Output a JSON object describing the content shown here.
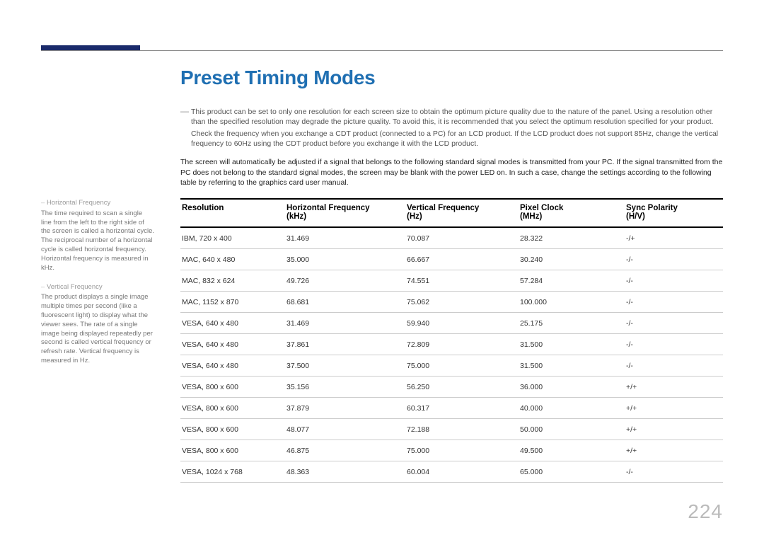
{
  "page": {
    "title": "Preset Timing Modes",
    "page_number": "224",
    "note1": "This product can be set to only one resolution for each screen size to obtain the optimum picture quality due to the nature of the panel. Using a resolution other than the specified resolution may degrade the picture quality. To avoid this, it is recommended that you select the optimum resolution specified for your product.",
    "note2": "Check the frequency when you exchange a CDT product (connected to a PC) for an LCD product. If the LCD product does not support 85Hz, change the vertical frequency to 60Hz using the CDT product before you exchange it with the LCD product.",
    "intro": "The screen will automatically be adjusted if a signal that belongs to the following standard signal modes is transmitted from your PC. If the signal transmitted from the PC does not belong to the standard signal modes, the screen may be blank with the power LED on. In such a case, change the settings according to the following table by referring to the graphics card user manual."
  },
  "sidebar": {
    "hf_term": "Horizontal Frequency",
    "hf_desc": "The time required to scan a single line from the left to the right side of the screen is called a horizontal cycle. The reciprocal number of a horizontal cycle is called horizontal frequency. Horizontal frequency is measured in kHz.",
    "vf_term": "Vertical Frequency",
    "vf_desc": "The product displays a single image multiple times per second (like a fluorescent light) to display what the viewer sees. The rate of a single image being displayed repeatedly per second is called vertical frequency or refresh rate. Vertical frequency is measured in Hz."
  },
  "table": {
    "columns": {
      "c1": "Resolution",
      "c2a": "Horizontal Frequency",
      "c2b": "(kHz)",
      "c3a": "Vertical Frequency",
      "c3b": "(Hz)",
      "c4a": "Pixel Clock",
      "c4b": "(MHz)",
      "c5a": "Sync Polarity",
      "c5b": "(H/V)"
    },
    "rows": [
      {
        "res": "IBM, 720 x 400",
        "hf": "31.469",
        "vf": "70.087",
        "pc": "28.322",
        "sp": "-/+"
      },
      {
        "res": "MAC, 640 x 480",
        "hf": "35.000",
        "vf": "66.667",
        "pc": "30.240",
        "sp": "-/-"
      },
      {
        "res": "MAC, 832 x 624",
        "hf": "49.726",
        "vf": "74.551",
        "pc": "57.284",
        "sp": "-/-"
      },
      {
        "res": "MAC, 1152 x 870",
        "hf": "68.681",
        "vf": "75.062",
        "pc": "100.000",
        "sp": "-/-"
      },
      {
        "res": "VESA, 640 x 480",
        "hf": "31.469",
        "vf": "59.940",
        "pc": "25.175",
        "sp": "-/-"
      },
      {
        "res": "VESA, 640 x 480",
        "hf": "37.861",
        "vf": "72.809",
        "pc": "31.500",
        "sp": "-/-"
      },
      {
        "res": "VESA, 640 x 480",
        "hf": "37.500",
        "vf": "75.000",
        "pc": "31.500",
        "sp": "-/-"
      },
      {
        "res": "VESA, 800 x 600",
        "hf": "35.156",
        "vf": "56.250",
        "pc": "36.000",
        "sp": "+/+"
      },
      {
        "res": "VESA, 800 x 600",
        "hf": "37.879",
        "vf": "60.317",
        "pc": "40.000",
        "sp": "+/+"
      },
      {
        "res": "VESA, 800 x 600",
        "hf": "48.077",
        "vf": "72.188",
        "pc": "50.000",
        "sp": "+/+"
      },
      {
        "res": "VESA, 800 x 600",
        "hf": "46.875",
        "vf": "75.000",
        "pc": "49.500",
        "sp": "+/+"
      },
      {
        "res": "VESA, 1024 x 768",
        "hf": "48.363",
        "vf": "60.004",
        "pc": "65.000",
        "sp": "-/-"
      }
    ]
  },
  "colors": {
    "accent_bar": "#1a2a6b",
    "title": "#1f6fb2",
    "rule": "#888888",
    "row_border": "#cccccc",
    "header_border": "#000000",
    "body_text": "#333333",
    "muted": "#777777",
    "page_num": "#bbbbbb",
    "background": "#ffffff"
  }
}
